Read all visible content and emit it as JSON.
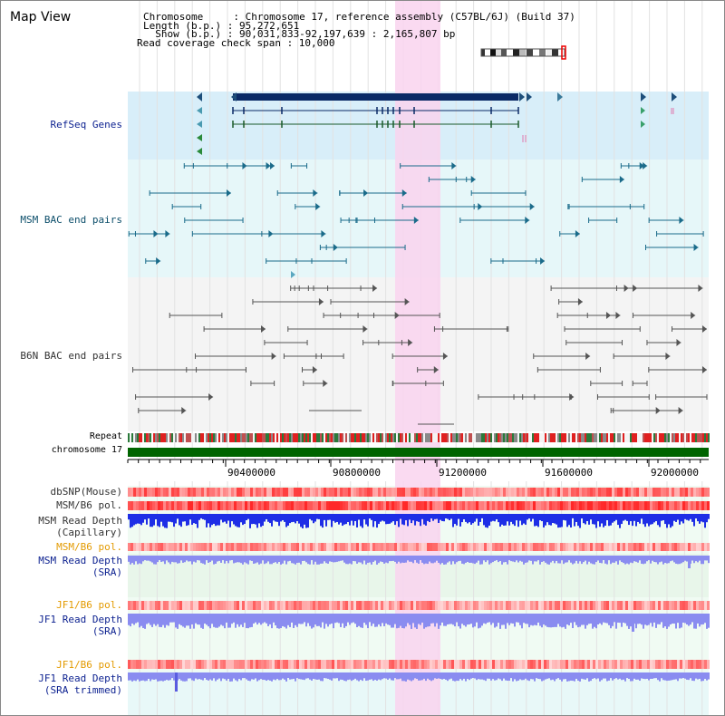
{
  "panel_title": "Map View",
  "info": {
    "chromosome": "Chromosome     : Chromosome 17, reference assembly (C57BL/6J) (Build 37)",
    "length": "Length (b.p.) : 95,272,651",
    "show": "  Show (b.p.) : 90,031,833-92,197,639 : 2,165,807 bp",
    "coverage": "Read coverage check span : 10,000"
  },
  "tracks": {
    "refseq": "RefSeq Genes",
    "msm_bac": "MSM BAC end pairs",
    "b6n_bac": "B6N BAC end pairs",
    "repeat": "Repeat",
    "chromosome": "chromosome 17",
    "dbsnp": "dbSNP(Mouse)",
    "msm_b6_pol": "MSM/B6 pol.",
    "msm_depth_cap_1": "MSM Read Depth",
    "msm_depth_cap_2": "(Capillary)",
    "msm_b6_pol_sra": "MSM/B6 pol.",
    "msm_depth_sra_1": "MSM Read Depth",
    "msm_depth_sra_2": "(SRA)",
    "jf1_b6_pol": "JF1/B6 pol.",
    "jf1_depth_sra_1": "JF1 Read Depth",
    "jf1_depth_sra_2": "(SRA)",
    "jf1_b6_pol_trim": "JF1/B6 pol.",
    "jf1_depth_trim_1": "JF1 Read Depth",
    "jf1_depth_trim_2": "(SRA trimmed)"
  },
  "axis": {
    "ticks": [
      "90400000",
      "90800000",
      "91200000",
      "91600000",
      "92000000"
    ]
  },
  "colors": {
    "refseq_bg": "#d8eef9",
    "msm_bg": "#e6f7f9",
    "b6n_bg": "#f4f4f4",
    "highlight": "#f9d3ee",
    "gene_dark": "#0a2a66",
    "msm_pair": "#1a6b8a",
    "b6n_pair": "#555555",
    "chromosome_bar": "#006400",
    "depth_capillary": "#1e2ee6",
    "depth_sra": "#8a8cf0",
    "pol_red": "#ee3333"
  }
}
